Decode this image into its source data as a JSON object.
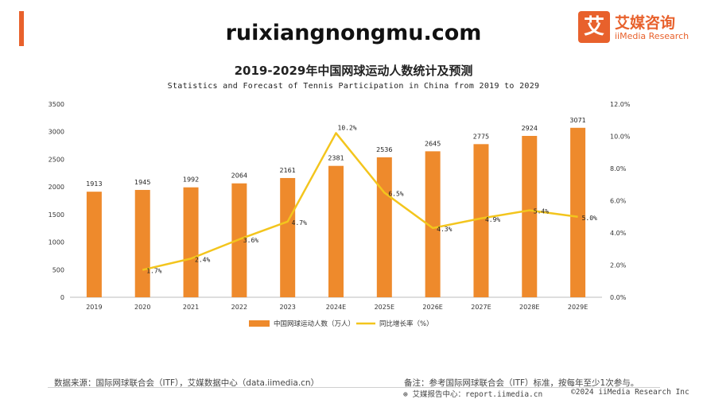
{
  "watermark": "ruixiangnongmu.com",
  "brand": {
    "logo_char": "艾",
    "name_cn": "艾媒咨询",
    "name_en": "iiMedia Research",
    "accent_color": "#e8612c"
  },
  "chart_data": {
    "type": "bar",
    "title": "2019-2029年中国网球运动人数统计及预测",
    "subtitle": "Statistics and Forecast of Tennis Participation in China from 2019 to 2029",
    "categories": [
      "2019",
      "2020",
      "2021",
      "2022",
      "2023",
      "2024E",
      "2025E",
      "2026E",
      "2027E",
      "2028E",
      "2029E"
    ],
    "series": [
      {
        "name": "中国网球运动人数（万人）",
        "type": "bar",
        "axis": "left",
        "color": "#ee8a2c",
        "values": [
          1913,
          1945,
          1992,
          2064,
          2161,
          2381,
          2536,
          2645,
          2775,
          2924,
          3071
        ]
      },
      {
        "name": "同比增长率（%）",
        "type": "line",
        "axis": "right",
        "color": "#f3c51d",
        "values": [
          null,
          1.7,
          2.4,
          3.6,
          4.7,
          10.2,
          6.5,
          4.3,
          4.9,
          5.4,
          5.0
        ],
        "labels": [
          null,
          "1.7%",
          "2.4%",
          "3.6%",
          "4.7%",
          "10.2%",
          "6.5%",
          "4.3%",
          "4.9%",
          "5.4%",
          "5.0%"
        ]
      }
    ],
    "y_left": {
      "min": 0,
      "max": 3500,
      "ticks": [
        "0",
        "500",
        "1000",
        "1500",
        "2000",
        "2500",
        "3000",
        "3500"
      ]
    },
    "y_right": {
      "min": 0,
      "max": 12,
      "ticks": [
        "0.0%",
        "2.0%",
        "4.0%",
        "6.0%",
        "8.0%",
        "10.0%",
        "12.0%"
      ]
    },
    "grid": false,
    "legend_position": "bottom"
  },
  "footer": {
    "source": "数据来源：国际网球联合会（ITF），艾媒数据中心（data.iimedia.cn）",
    "note": "备注：参考国际网球联合会（ITF）标准，按每年至少1次参与。",
    "center": "艾媒报告中心：report.iimedia.cn",
    "copyright": "©2024  iiMedia Research  Inc"
  }
}
